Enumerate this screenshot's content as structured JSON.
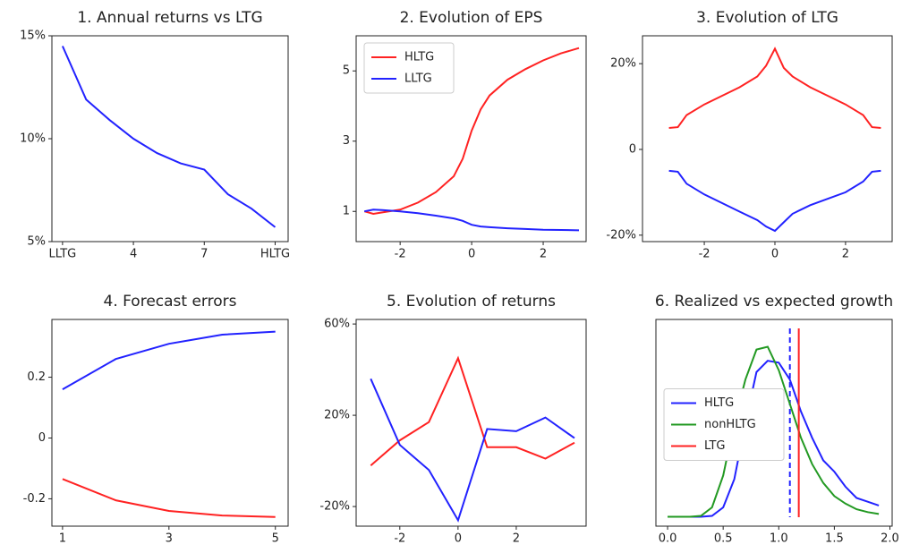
{
  "chart_data": [
    {
      "type": "line",
      "title": "1. Annual returns vs LTG",
      "x": [
        1,
        2,
        3,
        4,
        5,
        6,
        7,
        8,
        9,
        10
      ],
      "series": [
        {
          "color": "#2222ff",
          "values": [
            14.5,
            11.9,
            10.9,
            10.0,
            9.3,
            8.8,
            8.5,
            7.3,
            6.6,
            5.7
          ]
        }
      ],
      "xlim": [
        0.55,
        10.55
      ],
      "ylim": [
        5,
        15
      ],
      "xticks": [
        {
          "value": 1,
          "label": "LLTG"
        },
        4,
        7,
        {
          "value": 10,
          "label": "HLTG"
        }
      ],
      "yticks": [
        {
          "value": 15,
          "label": "15%"
        },
        {
          "value": 10,
          "label": "10%"
        },
        {
          "value": 5,
          "label": "5%"
        }
      ]
    },
    {
      "type": "line",
      "title": "2. Evolution of EPS",
      "x": [
        -3,
        -2.75,
        -2.5,
        -2,
        -1.5,
        -1,
        -0.5,
        -0.25,
        0,
        0.25,
        0.5,
        1,
        1.5,
        2,
        2.5,
        3
      ],
      "series": [
        {
          "name": "HLTG",
          "color": "#ff2222",
          "values": [
            1.0,
            0.93,
            0.97,
            1.05,
            1.25,
            1.55,
            2.0,
            2.5,
            3.3,
            3.9,
            4.3,
            4.75,
            5.05,
            5.3,
            5.5,
            5.65
          ]
        },
        {
          "name": "LLTG",
          "color": "#2222ff",
          "values": [
            1.0,
            1.05,
            1.04,
            1.0,
            0.95,
            0.88,
            0.8,
            0.73,
            0.62,
            0.57,
            0.55,
            0.52,
            0.5,
            0.48,
            0.47,
            0.46
          ]
        }
      ],
      "xlim": [
        -3.23,
        3.2
      ],
      "ylim": [
        0.14,
        6.0
      ],
      "xticks": [
        -2,
        0,
        2
      ],
      "yticks": [
        1,
        3,
        5
      ],
      "legend": "upper left"
    },
    {
      "type": "line",
      "title": "3. Evolution of LTG",
      "x": [
        -3,
        -2.75,
        -2.5,
        -2,
        -1.5,
        -1,
        -0.5,
        -0.25,
        0,
        0.25,
        0.5,
        1,
        1.5,
        2,
        2.5,
        2.75,
        3
      ],
      "series": [
        {
          "color": "#ff2222",
          "values": [
            5,
            5.2,
            8,
            10.5,
            12.5,
            14.5,
            17,
            19.5,
            23.5,
            19,
            17,
            14.5,
            12.5,
            10.5,
            8,
            5.2,
            5
          ]
        },
        {
          "color": "#2222ff",
          "values": [
            -5,
            -5.2,
            -8,
            -10.5,
            -12.5,
            -14.5,
            -16.5,
            -18,
            -19,
            -17,
            -15,
            -13,
            -11.5,
            -10,
            -7.5,
            -5.2,
            -5
          ]
        }
      ],
      "xlim": [
        -3.75,
        3.32
      ],
      "ylim": [
        -21.5,
        26.5
      ],
      "xticks": [
        -2,
        0,
        2
      ],
      "yticks": [
        {
          "value": 20,
          "label": "20%"
        },
        0,
        {
          "value": -20,
          "label": "-20%"
        }
      ]
    },
    {
      "type": "line",
      "title": "4. Forecast errors",
      "x": [
        1,
        2,
        3,
        4,
        5
      ],
      "series": [
        {
          "color": "#2222ff",
          "values": [
            0.16,
            0.26,
            0.31,
            0.34,
            0.35
          ]
        },
        {
          "color": "#ff2222",
          "values": [
            -0.135,
            -0.205,
            -0.24,
            -0.255,
            -0.26
          ]
        }
      ],
      "xlim": [
        0.8,
        5.24
      ],
      "ylim": [
        -0.29,
        0.39
      ],
      "xticks": [
        1,
        3,
        5
      ],
      "yticks": [
        0.2,
        0,
        -0.2
      ]
    },
    {
      "type": "line",
      "title": "5. Evolution of returns",
      "x": [
        -3,
        -2,
        -1,
        0,
        1,
        2,
        3,
        4
      ],
      "series": [
        {
          "color": "#ff2222",
          "values": [
            -2,
            9,
            17,
            45,
            6,
            6,
            1,
            8
          ]
        },
        {
          "color": "#2222ff",
          "values": [
            36,
            7,
            -4,
            -26,
            14,
            13,
            19,
            10
          ]
        }
      ],
      "xlim": [
        -3.5,
        4.4
      ],
      "ylim": [
        -28.6,
        62
      ],
      "xticks": [
        -2,
        0,
        2
      ],
      "yticks": [
        {
          "value": 60,
          "label": "60%"
        },
        {
          "value": 20,
          "label": "20%"
        },
        {
          "value": -20,
          "label": "-20%"
        }
      ]
    },
    {
      "type": "line",
      "title": "6. Realized vs expected growth",
      "x": [
        0,
        0.1,
        0.2,
        0.3,
        0.4,
        0.5,
        0.6,
        0.7,
        0.8,
        0.9,
        1.0,
        1.1,
        1.2,
        1.3,
        1.4,
        1.5,
        1.6,
        1.7,
        1.8,
        1.9
      ],
      "series": [
        {
          "name": "HLTG",
          "color": "#2222ff",
          "values": [
            0,
            0,
            0,
            0,
            0.005,
            0.05,
            0.2,
            0.5,
            0.77,
            0.83,
            0.82,
            0.73,
            0.56,
            0.42,
            0.3,
            0.24,
            0.16,
            0.1,
            0.08,
            0.06
          ]
        },
        {
          "name": "nonHLTG",
          "color": "#229922",
          "values": [
            0,
            0,
            0,
            0.005,
            0.05,
            0.22,
            0.5,
            0.73,
            0.89,
            0.905,
            0.78,
            0.6,
            0.42,
            0.28,
            0.18,
            0.11,
            0.07,
            0.04,
            0.025,
            0.015
          ]
        },
        {
          "name": "LTG",
          "color": "#ff2222",
          "vline": 1.18
        }
      ],
      "vlines": [
        {
          "value": 1.1,
          "color": "#2222ff",
          "dashed": true
        }
      ],
      "xlim": [
        -0.105,
        2.02
      ],
      "ylim": [
        -0.05,
        1.05
      ],
      "xticks": [
        {
          "value": 0,
          "label": "0.0"
        },
        0.5,
        {
          "value": 1,
          "label": "1.0"
        },
        1.5,
        {
          "value": 2,
          "label": "2.0"
        }
      ],
      "legend": "center left"
    }
  ]
}
